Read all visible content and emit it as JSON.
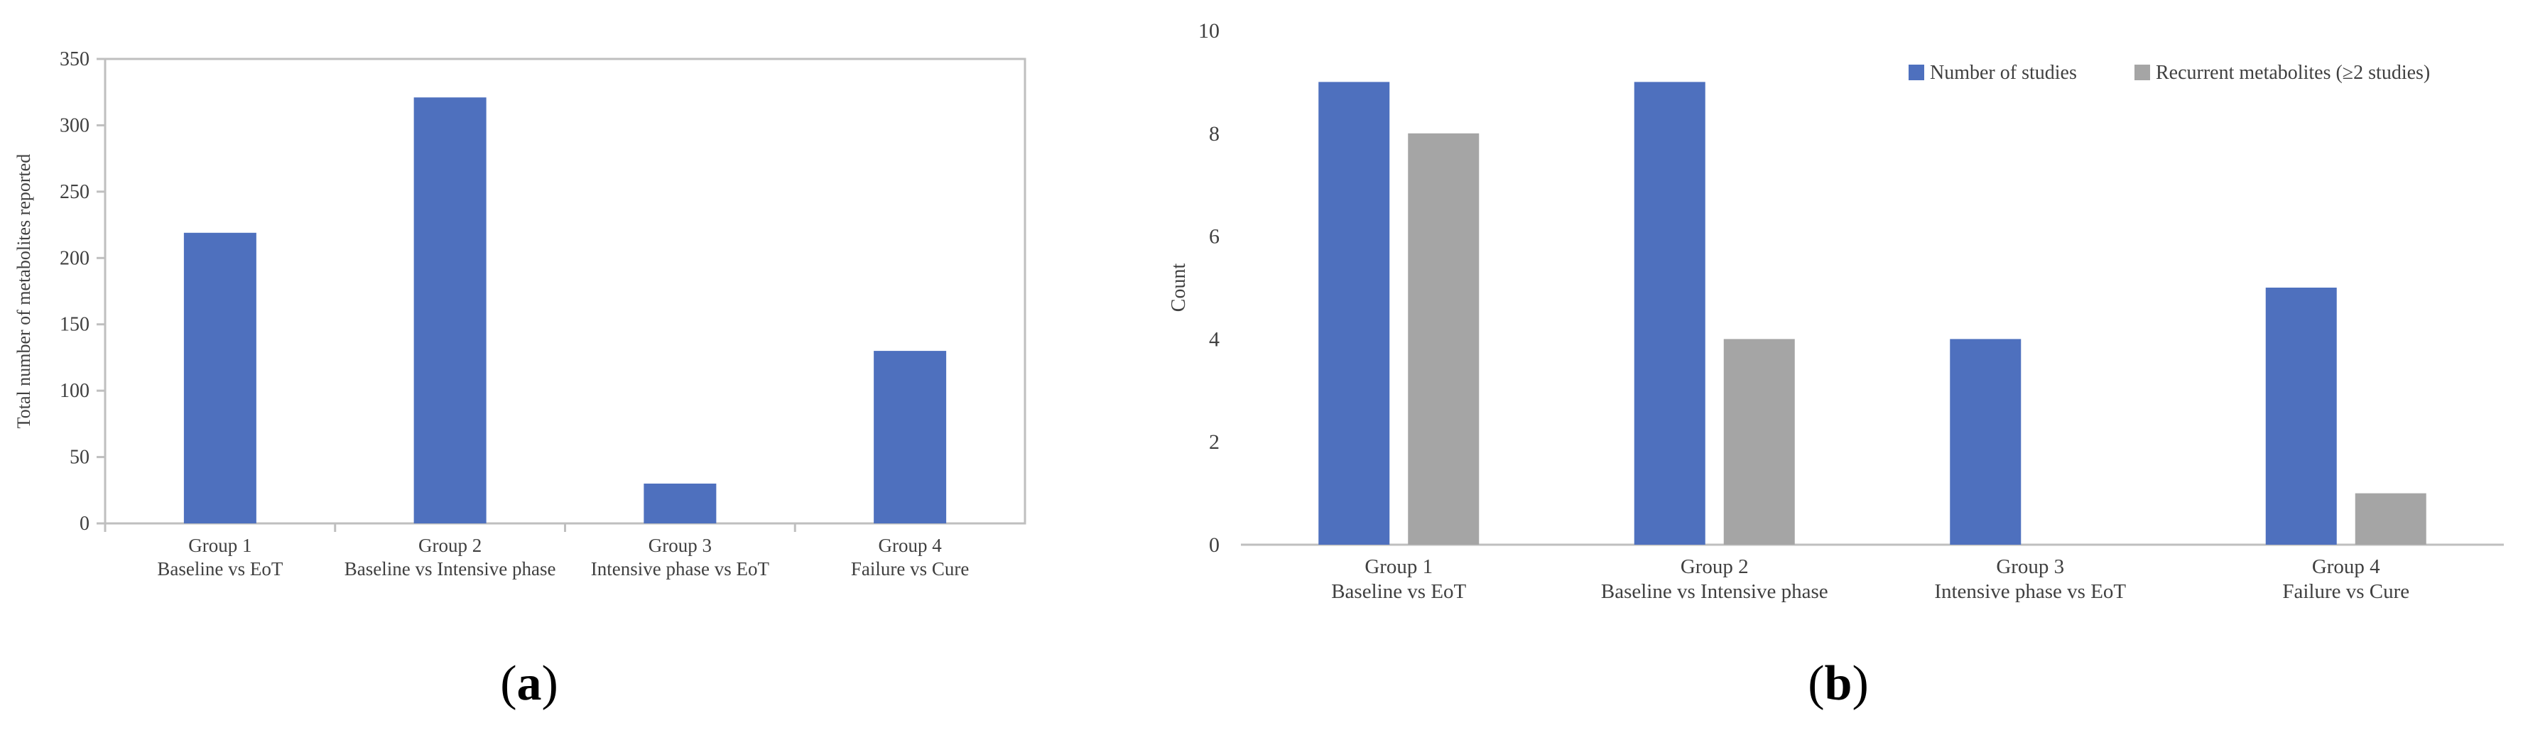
{
  "colors": {
    "studies": "#4E70BE",
    "recurrent": "#A5A5A5",
    "bar_a": "#4E70BE",
    "axis": "#BFBFBF",
    "text": "#404040"
  },
  "panel_a": {
    "label": "a"
  },
  "panel_b": {
    "label": "b"
  },
  "chart_data": [
    {
      "type": "bar",
      "panel": "a",
      "categories": [
        [
          "Group 1",
          "Baseline vs EoT"
        ],
        [
          "Group 2",
          "Baseline vs Intensive phase"
        ],
        [
          "Group 3",
          "Intensive phase vs EoT"
        ],
        [
          "Group 4",
          "Failure vs Cure"
        ]
      ],
      "values": [
        219,
        321,
        30,
        130
      ],
      "ylabel": "Total number of metabolites reported",
      "xlabel": "",
      "ylim": [
        0,
        350
      ],
      "yticks": [
        0,
        50,
        100,
        150,
        200,
        250,
        300,
        350
      ],
      "grid": false,
      "legend": "none",
      "frame": true
    },
    {
      "type": "bar",
      "panel": "b",
      "categories": [
        [
          "Group 1",
          "Baseline vs EoT"
        ],
        [
          "Group 2",
          "Baseline vs Intensive phase"
        ],
        [
          "Group 3",
          "Intensive phase vs EoT"
        ],
        [
          "Group 4",
          "Failure vs Cure"
        ]
      ],
      "series": [
        {
          "name": "Number of studies",
          "values": [
            9,
            9,
            4,
            5
          ],
          "color": "#4E70BE"
        },
        {
          "name": "Recurrent metabolites (≥2 studies)",
          "values": [
            8,
            4,
            0,
            1
          ],
          "color": "#A5A5A5"
        }
      ],
      "ylabel": "Count",
      "xlabel": "",
      "ylim": [
        0,
        10
      ],
      "yticks": [
        0,
        2,
        4,
        6,
        8,
        10
      ],
      "grid": false,
      "legend": "top-right",
      "frame": false
    }
  ]
}
